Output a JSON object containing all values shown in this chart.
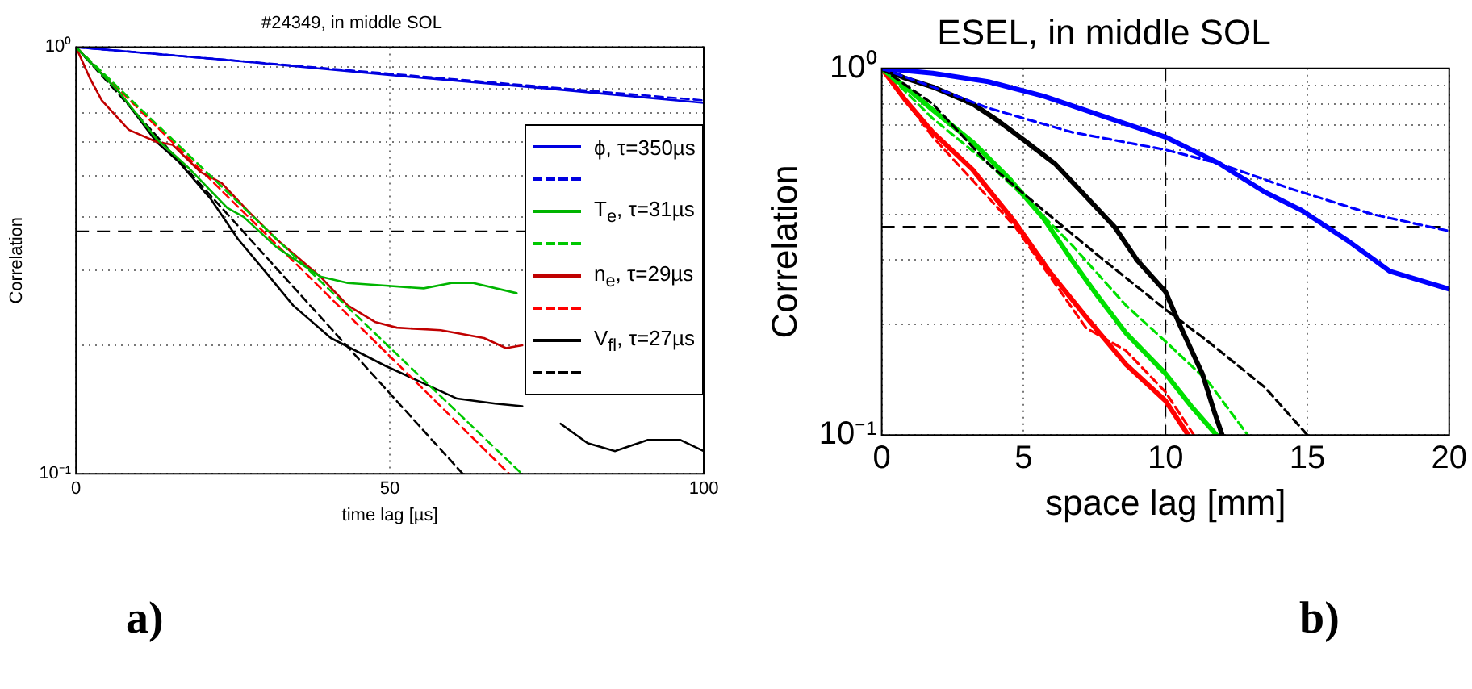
{
  "chart_data": [
    {
      "type": "line",
      "title": "#24349, in middle SOL",
      "xlabel": "time lag [µs]",
      "ylabel": "Correlation",
      "log": true,
      "grid": true,
      "legend": "right",
      "xlim": [
        0,
        100
      ],
      "xticks": [
        0,
        50,
        100
      ],
      "ylim": [
        0.1,
        1
      ],
      "yticks": [
        {
          "value": 0.1,
          "label": "10⁻¹"
        },
        {
          "value": 0.2,
          "label": null
        },
        {
          "value": 0.3,
          "label": null
        },
        {
          "value": 0.4,
          "label": null
        },
        {
          "value": 0.5,
          "label": null
        },
        {
          "value": 0.6,
          "label": null
        },
        {
          "value": 0.7,
          "label": null
        },
        {
          "value": 0.8,
          "label": null
        },
        {
          "value": 0.9,
          "label": null
        },
        {
          "value": 1,
          "label": "10⁰"
        }
      ],
      "series": [
        {
          "name": "ϕ, τ=350µs",
          "color": "#0000e0",
          "x": [
            0,
            25,
            50,
            75,
            100
          ],
          "values": [
            1,
            0.93,
            0.86,
            0.8,
            0.74
          ]
        },
        {
          "color": "#0000e0",
          "line_style": "dashed",
          "x": [
            0,
            100
          ],
          "values": [
            1,
            0.75
          ]
        },
        {
          "name": "T$_{e}$, τ=31µs",
          "color": "#00b400",
          "x": [
            0,
            2,
            6.7,
            12.8,
            18,
            24.1,
            26.7,
            31.9,
            38.9,
            43.3,
            49.3,
            55.4,
            59.8,
            63.3,
            70.2
          ],
          "values": [
            1,
            0.93,
            0.79,
            0.61,
            0.52,
            0.42,
            0.4,
            0.34,
            0.29,
            0.28,
            0.276,
            0.272,
            0.28,
            0.28,
            0.265
          ]
        },
        {
          "color": "#00c800",
          "line_style": "dashed",
          "x": [
            0,
            71
          ],
          "values": [
            1,
            0.1
          ]
        },
        {
          "name": "n$_{e}$, τ=29µs",
          "color": "#c00000",
          "x": [
            0,
            2.3,
            4.1,
            8.4,
            12.8,
            15.4,
            19.8,
            23.2,
            27.6,
            31.9,
            38.9,
            43.3,
            47.6,
            51.1,
            58.1,
            65,
            68.5,
            71.1
          ],
          "values": [
            1,
            0.84,
            0.75,
            0.64,
            0.6,
            0.59,
            0.51,
            0.48,
            0.41,
            0.355,
            0.29,
            0.248,
            0.227,
            0.22,
            0.217,
            0.208,
            0.197,
            0.2
          ]
        },
        {
          "color": "#ff0000",
          "line_style": "dashed",
          "x": [
            0,
            69
          ],
          "values": [
            1,
            0.1
          ]
        },
        {
          "name": "V$_{fl}$, τ=27µs",
          "color": "#000000",
          "x": [
            0,
            6.7,
            12.8,
            16.3,
            21.5,
            25.8,
            30.2,
            34.6,
            40.6,
            49.3,
            60.7,
            66.8,
            71.1,
            74,
            77.2,
            81.5,
            85.9,
            91.1,
            96.3,
            100
          ],
          "values": [
            1,
            0.79,
            0.6,
            0.54,
            0.44,
            0.355,
            0.297,
            0.248,
            0.208,
            0.179,
            0.15,
            0.146,
            0.144,
            null,
            0.131,
            0.118,
            0.113,
            0.12,
            0.12,
            0.113
          ]
        },
        {
          "color": "#000000",
          "line_style": "dashed",
          "x": [
            0,
            61.6
          ],
          "values": [
            1,
            0.1
          ]
        }
      ],
      "ref_lines": [
        {
          "axis": "y",
          "value": 0.37,
          "color": "#000000",
          "line_style": "dashed"
        }
      ],
      "annotations": [
        "a)"
      ]
    },
    {
      "type": "line",
      "title": "ESEL, in middle SOL",
      "xlabel": "space lag [mm]",
      "ylabel": "Correlation",
      "log": true,
      "grid": true,
      "xlim": [
        0,
        20
      ],
      "xticks": [
        0,
        5,
        10,
        15,
        20
      ],
      "ylim": [
        0.1,
        1
      ],
      "yticks": [
        {
          "value": 0.1,
          "label": "10⁻¹"
        },
        {
          "value": 0.2,
          "label": null
        },
        {
          "value": 0.3,
          "label": null
        },
        {
          "value": 0.4,
          "label": null
        },
        {
          "value": 0.5,
          "label": null
        },
        {
          "value": 0.6,
          "label": null
        },
        {
          "value": 0.7,
          "label": null
        },
        {
          "value": 0.8,
          "label": null
        },
        {
          "value": 0.9,
          "label": null
        },
        {
          "value": 1,
          "label": "10⁰"
        }
      ],
      "series": [
        {
          "color": "#0000ff",
          "x": [
            0,
            1.8,
            3.75,
            5.7,
            7.6,
            10,
            11.9,
            13.5,
            14.8,
            16.4,
            17.9,
            20
          ],
          "values": [
            1,
            0.97,
            0.92,
            0.84,
            0.75,
            0.65,
            0.55,
            0.46,
            0.41,
            0.34,
            0.28,
            0.25
          ]
        },
        {
          "color": "#0000ff",
          "line_style": "dashed",
          "x": [
            0,
            1.8,
            3.75,
            6.7,
            10,
            11.9,
            14.4,
            17.3,
            20
          ],
          "values": [
            1,
            0.89,
            0.78,
            0.67,
            0.6,
            0.55,
            0.47,
            0.4,
            0.36
          ]
        },
        {
          "color": "#000000",
          "x": [
            0,
            0.83,
            1.8,
            3.2,
            4.1,
            5.1,
            6.1,
            7.05,
            8.2,
            9,
            10,
            10.5,
            11.3,
            11.7,
            12
          ],
          "values": [
            1,
            0.94,
            0.89,
            0.8,
            0.72,
            0.63,
            0.55,
            0.46,
            0.37,
            0.3,
            0.246,
            0.2,
            0.147,
            0.117,
            0.1
          ]
        },
        {
          "color": "#000000",
          "line_style": "dashed",
          "x": [
            0,
            1.8,
            3.75,
            5.7,
            7.6,
            10,
            11.5,
            13.5,
            15
          ],
          "values": [
            1,
            0.8,
            0.55,
            0.41,
            0.31,
            0.22,
            0.18,
            0.135,
            0.1
          ]
        },
        {
          "color": "#00e000",
          "x": [
            0,
            0.83,
            1.8,
            3.2,
            4.5,
            5.7,
            6.7,
            7.6,
            8.6,
            10,
            10.9,
            11.8
          ],
          "values": [
            1,
            0.89,
            0.77,
            0.63,
            0.5,
            0.39,
            0.3,
            0.24,
            0.19,
            0.147,
            0.12,
            0.1
          ]
        },
        {
          "color": "#00e000",
          "line_style": "dashed",
          "x": [
            0,
            1.8,
            3.75,
            5.1,
            6.7,
            8.6,
            10,
            11.5,
            12.9
          ],
          "values": [
            1,
            0.73,
            0.55,
            0.44,
            0.33,
            0.226,
            0.18,
            0.14,
            0.1
          ]
        },
        {
          "color": "#ff0000",
          "x": [
            0,
            0.83,
            1.8,
            3.2,
            4.7,
            5.9,
            7.2,
            8.6,
            10,
            10.8
          ],
          "values": [
            1,
            0.82,
            0.67,
            0.53,
            0.38,
            0.28,
            0.21,
            0.156,
            0.124,
            0.1
          ]
        },
        {
          "color": "#ff0000",
          "line_style": "dashed",
          "x": [
            0,
            1.8,
            4.7,
            7.2,
            8.6,
            10,
            11
          ],
          "values": [
            1,
            0.65,
            0.37,
            0.196,
            0.17,
            0.131,
            0.1
          ]
        }
      ],
      "ref_lines": [
        {
          "axis": "y",
          "value": 0.37,
          "color": "#000000",
          "line_style": "dashed"
        },
        {
          "axis": "x",
          "value": 10,
          "color": "#000000",
          "line_style": "dashed"
        }
      ],
      "annotations": [
        "b)"
      ]
    }
  ]
}
